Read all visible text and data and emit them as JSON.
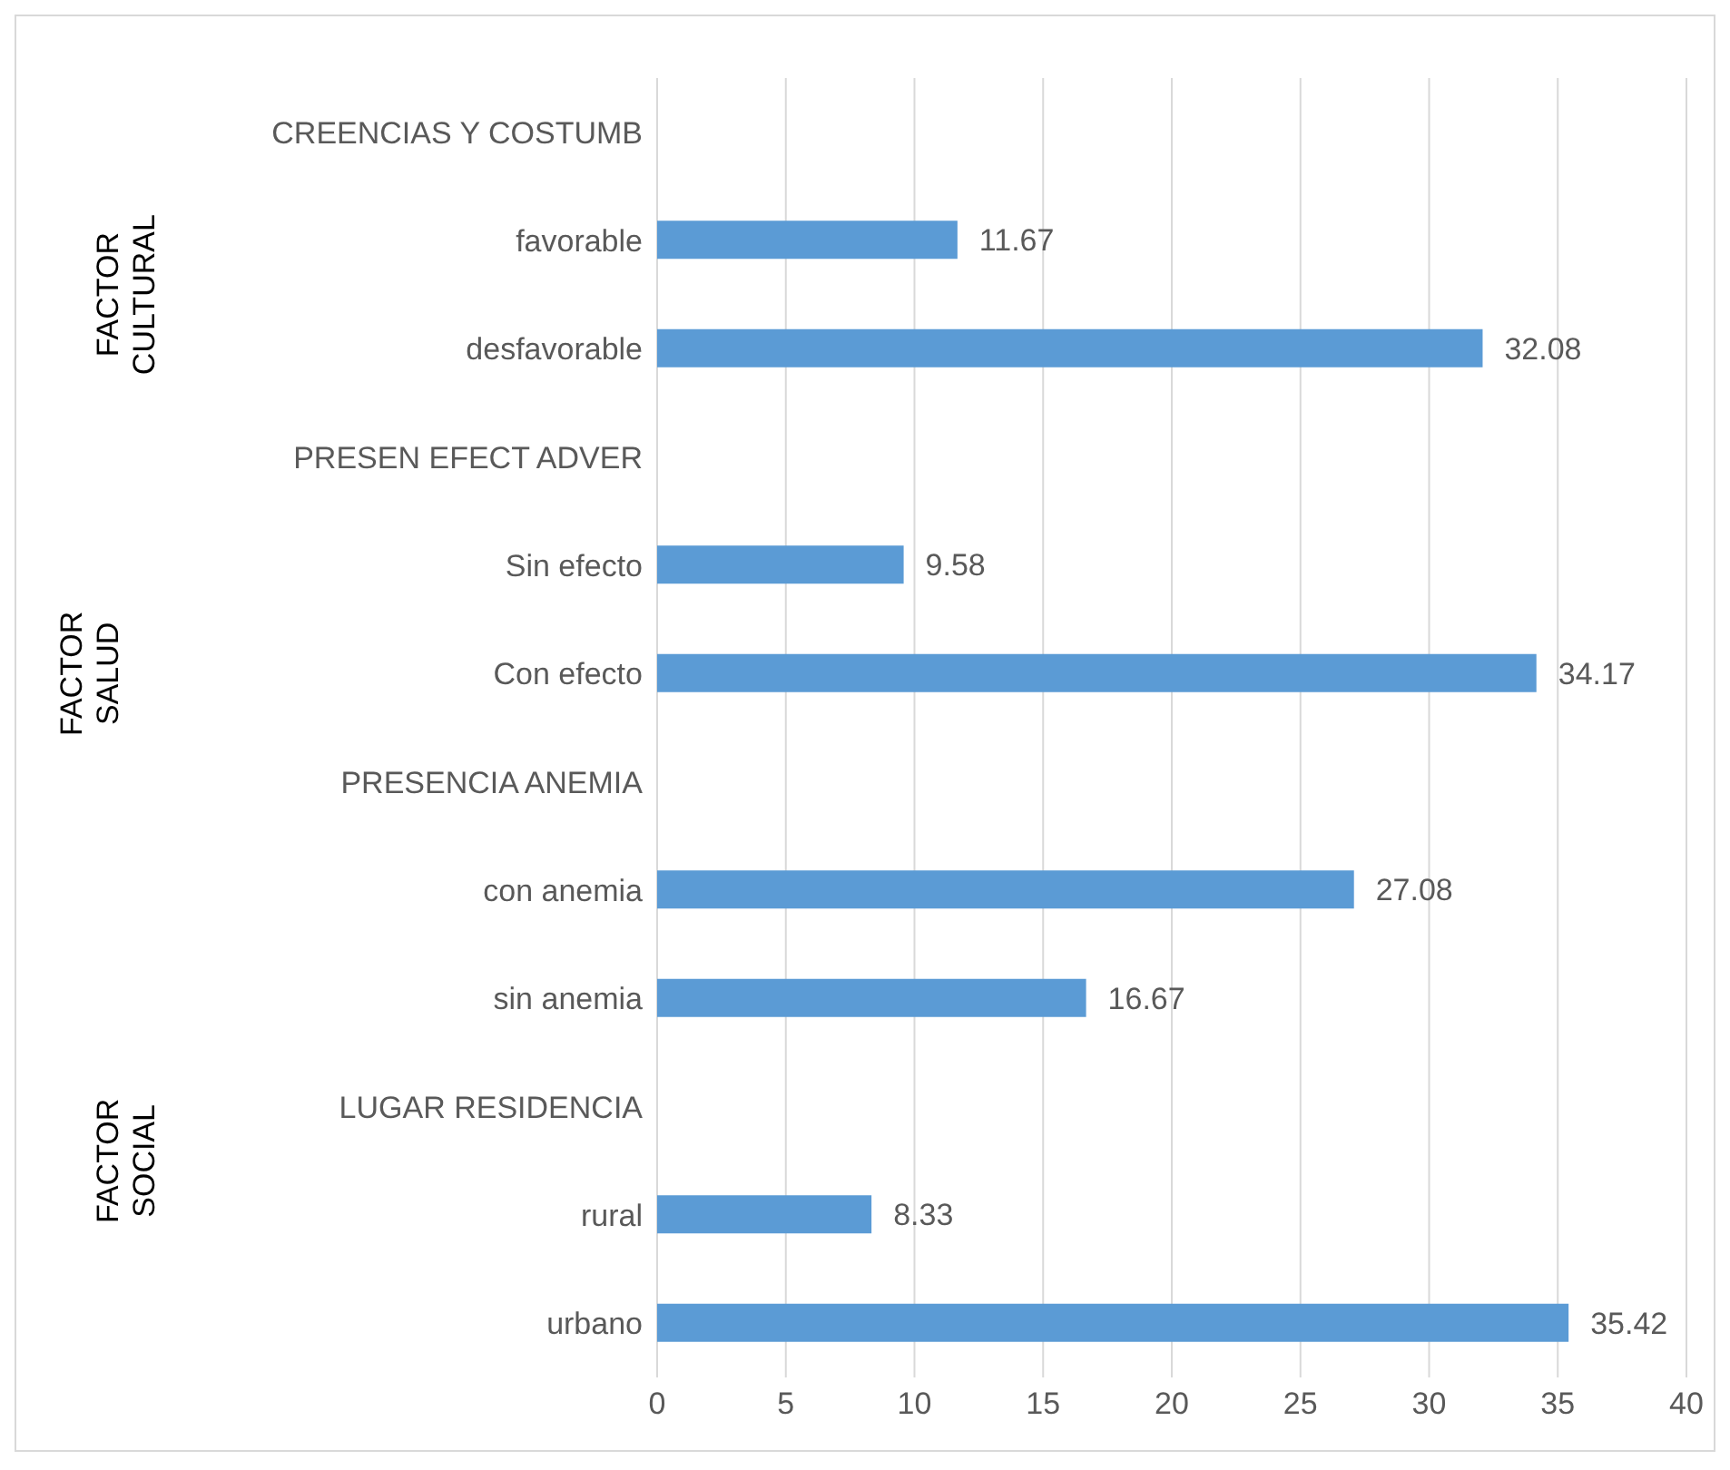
{
  "chart_data": {
    "type": "bar",
    "orientation": "horizontal",
    "categories": [
      "CREENCIAS Y COSTUMB",
      "favorable",
      "desfavorable",
      "PRESEN EFECT ADVER",
      "Sin efecto",
      "Con efecto",
      "PRESENCIA ANEMIA",
      "con anemia",
      "sin anemia",
      "LUGAR RESIDENCIA",
      "rural",
      "urbano"
    ],
    "values": [
      null,
      11.67,
      32.08,
      null,
      9.58,
      34.17,
      null,
      27.08,
      16.67,
      null,
      8.33,
      35.42
    ],
    "color": "#5b9bd5",
    "data_labels": true,
    "xlim": [
      0,
      40
    ],
    "xticks": [
      0,
      5,
      10,
      15,
      20,
      25,
      30,
      35,
      40
    ],
    "grid": "x",
    "annotations": [
      "FACTOR CULTURAL",
      "FACTOR SALUD",
      "FACTOR SOCIAL"
    ]
  }
}
